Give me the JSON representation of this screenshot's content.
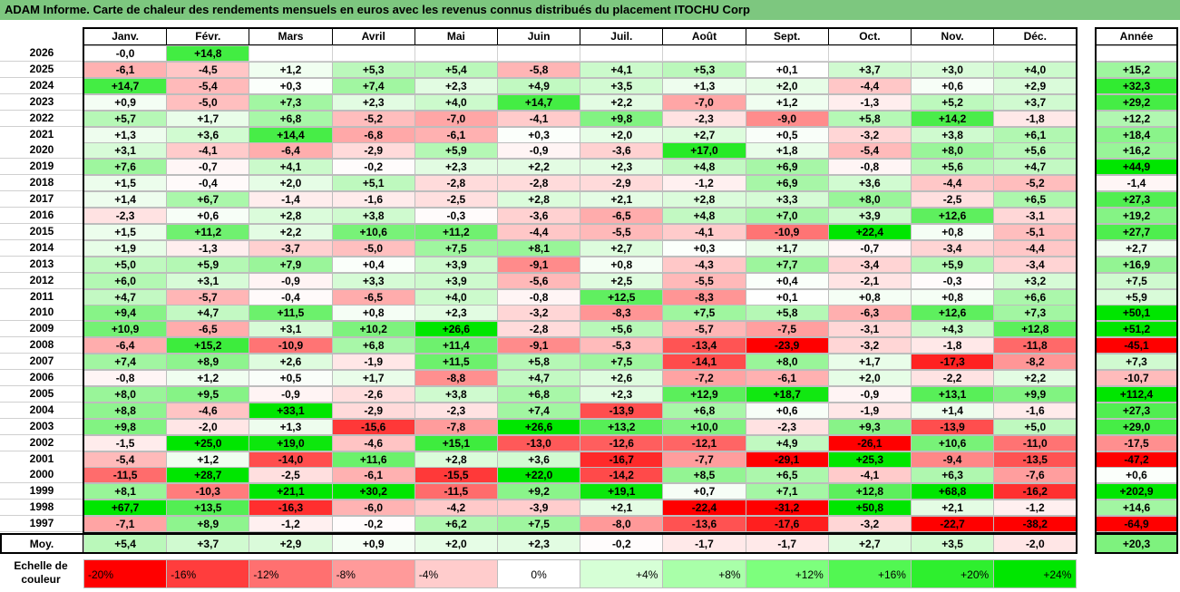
{
  "title": "ADAM Informe. Carte de chaleur des rendements mensuels en euros avec les revenus connus distribués du placement ITOCHU Corp",
  "chart_data": {
    "type": "heatmap",
    "title": "ADAM Informe. Carte de chaleur des rendements mensuels en euros avec les revenus connus distribués du placement ITOCHU Corp",
    "months": [
      "Janv.",
      "Févr.",
      "Mars",
      "Avril",
      "Mai",
      "Juin",
      "Juil.",
      "Août",
      "Sept.",
      "Oct.",
      "Nov.",
      "Déc."
    ],
    "annual_header": "Année",
    "rows": [
      {
        "year": "2026",
        "values": [
          "-0,0",
          "+14,8",
          "",
          "",
          "",
          "",
          "",
          "",
          "",
          "",
          "",
          ""
        ],
        "annual": ""
      },
      {
        "year": "2025",
        "values": [
          "-6,1",
          "-4,5",
          "+1,2",
          "+5,3",
          "+5,4",
          "-5,8",
          "+4,1",
          "+5,3",
          "+0,1",
          "+3,7",
          "+3,0",
          "+4,0"
        ],
        "annual": "+15,2"
      },
      {
        "year": "2024",
        "values": [
          "+14,7",
          "-5,4",
          "+0,3",
          "+7,4",
          "+2,3",
          "+4,9",
          "+3,5",
          "+1,3",
          "+2,0",
          "-4,4",
          "+0,6",
          "+2,9"
        ],
        "annual": "+32,3"
      },
      {
        "year": "2023",
        "values": [
          "+0,9",
          "-5,0",
          "+7,3",
          "+2,3",
          "+4,0",
          "+14,7",
          "+2,2",
          "-7,0",
          "+1,2",
          "-1,3",
          "+5,2",
          "+3,7"
        ],
        "annual": "+29,2"
      },
      {
        "year": "2022",
        "values": [
          "+5,7",
          "+1,7",
          "+6,8",
          "-5,2",
          "-7,0",
          "-4,1",
          "+9,8",
          "-2,3",
          "-9,0",
          "+5,8",
          "+14,2",
          "-1,8"
        ],
        "annual": "+12,2"
      },
      {
        "year": "2021",
        "values": [
          "+1,3",
          "+3,6",
          "+14,4",
          "-6,8",
          "-6,1",
          "+0,3",
          "+2,0",
          "+2,7",
          "+0,5",
          "-3,2",
          "+3,8",
          "+6,1"
        ],
        "annual": "+18,4"
      },
      {
        "year": "2020",
        "values": [
          "+3,1",
          "-4,1",
          "-6,4",
          "-2,9",
          "+5,9",
          "-0,9",
          "-3,6",
          "+17,0",
          "+1,8",
          "-5,4",
          "+8,0",
          "+5,6"
        ],
        "annual": "+16,2"
      },
      {
        "year": "2019",
        "values": [
          "+7,6",
          "-0,7",
          "+4,1",
          "-0,2",
          "+2,3",
          "+2,2",
          "+2,3",
          "+4,8",
          "+6,9",
          "-0,8",
          "+5,6",
          "+4,7"
        ],
        "annual": "+44,9"
      },
      {
        "year": "2018",
        "values": [
          "+1,5",
          "-0,4",
          "+2,0",
          "+5,1",
          "-2,8",
          "-2,8",
          "-2,9",
          "-1,2",
          "+6,9",
          "+3,6",
          "-4,4",
          "-5,2"
        ],
        "annual": "-1,4"
      },
      {
        "year": "2017",
        "values": [
          "+1,4",
          "+6,7",
          "-1,4",
          "-1,6",
          "-2,5",
          "+2,8",
          "+2,1",
          "+2,8",
          "+3,3",
          "+8,0",
          "-2,5",
          "+6,5"
        ],
        "annual": "+27,3"
      },
      {
        "year": "2016",
        "values": [
          "-2,3",
          "+0,6",
          "+2,8",
          "+3,8",
          "-0,3",
          "-3,6",
          "-6,5",
          "+4,8",
          "+7,0",
          "+3,9",
          "+12,6",
          "-3,1"
        ],
        "annual": "+19,2"
      },
      {
        "year": "2015",
        "values": [
          "+1,5",
          "+11,2",
          "+2,2",
          "+10,6",
          "+11,2",
          "-4,4",
          "-5,5",
          "-4,1",
          "-10,9",
          "+22,4",
          "+0,8",
          "-5,1"
        ],
        "annual": "+27,7"
      },
      {
        "year": "2014",
        "values": [
          "+1,9",
          "-1,3",
          "-3,7",
          "-5,0",
          "+7,5",
          "+8,1",
          "+2,7",
          "+0,3",
          "+1,7",
          "-0,7",
          "-3,4",
          "-4,4"
        ],
        "annual": "+2,7"
      },
      {
        "year": "2013",
        "values": [
          "+5,0",
          "+5,9",
          "+7,9",
          "+0,4",
          "+3,9",
          "-9,1",
          "+0,8",
          "-4,3",
          "+7,7",
          "-3,4",
          "+5,9",
          "-3,4"
        ],
        "annual": "+16,9"
      },
      {
        "year": "2012",
        "values": [
          "+6,0",
          "+3,1",
          "-0,9",
          "+3,3",
          "+3,9",
          "-5,6",
          "+2,5",
          "-5,5",
          "+0,4",
          "-2,1",
          "-0,3",
          "+3,2"
        ],
        "annual": "+7,5"
      },
      {
        "year": "2011",
        "values": [
          "+4,7",
          "-5,7",
          "-0,4",
          "-6,5",
          "+4,0",
          "-0,8",
          "+12,5",
          "-8,3",
          "+0,1",
          "+0,8",
          "+0,8",
          "+6,6"
        ],
        "annual": "+5,9"
      },
      {
        "year": "2010",
        "values": [
          "+9,4",
          "+4,7",
          "+11,5",
          "+0,8",
          "+2,3",
          "-3,2",
          "-8,3",
          "+7,5",
          "+5,8",
          "-6,3",
          "+12,6",
          "+7,3"
        ],
        "annual": "+50,1"
      },
      {
        "year": "2009",
        "values": [
          "+10,9",
          "-6,5",
          "+3,1",
          "+10,2",
          "+26,6",
          "-2,8",
          "+5,6",
          "-5,7",
          "-7,5",
          "-3,1",
          "+4,3",
          "+12,8"
        ],
        "annual": "+51,2"
      },
      {
        "year": "2008",
        "values": [
          "-6,4",
          "+15,2",
          "-10,9",
          "+6,8",
          "+11,4",
          "-9,1",
          "-5,3",
          "-13,4",
          "-23,9",
          "-3,2",
          "-1,8",
          "-11,8"
        ],
        "annual": "-45,1"
      },
      {
        "year": "2007",
        "values": [
          "+7,4",
          "+8,9",
          "+2,6",
          "-1,9",
          "+11,5",
          "+5,8",
          "+7,5",
          "-14,1",
          "+8,0",
          "+1,7",
          "-17,3",
          "-8,2"
        ],
        "annual": "+7,3"
      },
      {
        "year": "2006",
        "values": [
          "-0,8",
          "+1,2",
          "+0,5",
          "+1,7",
          "-8,8",
          "+4,7",
          "+2,6",
          "-7,2",
          "-6,1",
          "+2,0",
          "-2,2",
          "+2,2"
        ],
        "annual": "-10,7"
      },
      {
        "year": "2005",
        "values": [
          "+8,0",
          "+9,5",
          "-0,9",
          "-2,6",
          "+3,8",
          "+6,8",
          "+2,3",
          "+12,9",
          "+18,7",
          "-0,9",
          "+13,1",
          "+9,9"
        ],
        "annual": "+112,4"
      },
      {
        "year": "2004",
        "values": [
          "+8,8",
          "-4,6",
          "+33,1",
          "-2,9",
          "-2,3",
          "+7,4",
          "-13,9",
          "+6,8",
          "+0,6",
          "-1,9",
          "+1,4",
          "-1,6"
        ],
        "annual": "+27,3"
      },
      {
        "year": "2003",
        "values": [
          "+9,8",
          "-2,0",
          "+1,3",
          "-15,6",
          "-7,8",
          "+26,6",
          "+13,2",
          "+10,0",
          "-2,3",
          "+9,3",
          "-13,9",
          "+5,0"
        ],
        "annual": "+29,0"
      },
      {
        "year": "2002",
        "values": [
          "-1,5",
          "+25,0",
          "+19,0",
          "-4,6",
          "+15,1",
          "-13,0",
          "-12,6",
          "-12,1",
          "+4,9",
          "-26,1",
          "+10,6",
          "-11,0"
        ],
        "annual": "-17,5"
      },
      {
        "year": "2001",
        "values": [
          "-5,4",
          "+1,2",
          "-14,0",
          "+11,6",
          "+2,8",
          "+3,6",
          "-16,7",
          "-7,7",
          "-29,1",
          "+25,3",
          "-9,4",
          "-13,5"
        ],
        "annual": "-47,2"
      },
      {
        "year": "2000",
        "values": [
          "-11,5",
          "+28,7",
          "-2,5",
          "-6,1",
          "-15,5",
          "+22,0",
          "-14,2",
          "+8,5",
          "+6,5",
          "-4,1",
          "+6,3",
          "-7,6"
        ],
        "annual": "+0,6"
      },
      {
        "year": "1999",
        "values": [
          "+8,1",
          "-10,3",
          "+21,1",
          "+30,2",
          "-11,5",
          "+9,2",
          "+19,1",
          "+0,7",
          "+7,1",
          "+12,8",
          "+68,8",
          "-16,2"
        ],
        "annual": "+202,9"
      },
      {
        "year": "1998",
        "values": [
          "+67,7",
          "+13,5",
          "-16,3",
          "-6,0",
          "-4,2",
          "-3,9",
          "+2,1",
          "-22,4",
          "-31,2",
          "+50,8",
          "+2,1",
          "-1,2"
        ],
        "annual": "+14,6"
      },
      {
        "year": "1997",
        "values": [
          "-7,1",
          "+8,9",
          "-1,2",
          "-0,2",
          "+6,2",
          "+7,5",
          "-8,0",
          "-13,6",
          "-17,6",
          "-3,2",
          "-22,7",
          "-38,2"
        ],
        "annual": "-64,9"
      }
    ],
    "average": {
      "label": "Moy.",
      "values": [
        "+5,4",
        "+3,7",
        "+2,9",
        "+0,9",
        "+2,0",
        "+2,3",
        "-0,2",
        "-1,7",
        "-1,7",
        "+2,7",
        "+3,5",
        "-2,0"
      ],
      "annual": "+20,3"
    },
    "scale": {
      "label_line1": "Echelle de",
      "label_line2": "couleur",
      "steps": [
        {
          "label": "-20%",
          "value": -20,
          "color": "#ff0000"
        },
        {
          "label": "-16%",
          "value": -16,
          "color": "#ff3d3d"
        },
        {
          "label": "-12%",
          "value": -12,
          "color": "#ff7070"
        },
        {
          "label": "-8%",
          "value": -8,
          "color": "#ff9a9a"
        },
        {
          "label": "-4%",
          "value": -4,
          "color": "#ffcccc"
        },
        {
          "label": "0%",
          "value": 0,
          "color": "#ffffff"
        },
        {
          "label": "+4%",
          "value": 4,
          "color": "#d6ffd6"
        },
        {
          "label": "+8%",
          "value": 8,
          "color": "#a9ffa9"
        },
        {
          "label": "+12%",
          "value": 12,
          "color": "#7dff7d"
        },
        {
          "label": "+16%",
          "value": 16,
          "color": "#52f752"
        },
        {
          "label": "+20%",
          "value": 20,
          "color": "#2eef2e"
        },
        {
          "label": "+24%",
          "value": 24,
          "color": "#00e600"
        }
      ]
    },
    "colors": {
      "negative_max": "#ff0000",
      "positive_max": "#00e600",
      "title_bar": "#7dc77f"
    }
  }
}
